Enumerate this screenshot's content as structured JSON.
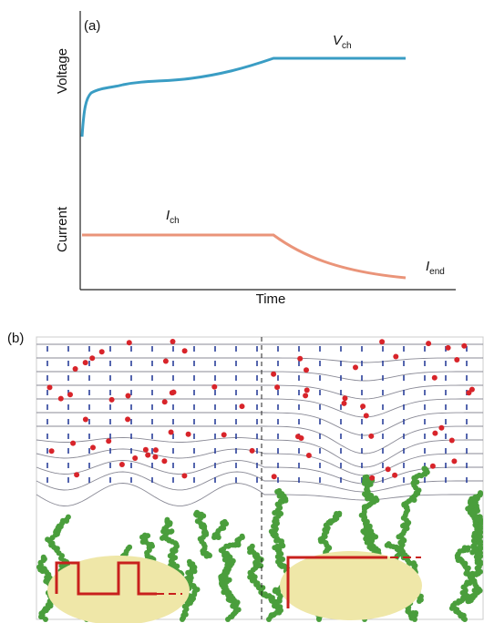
{
  "panel_a": {
    "label": "(a)",
    "y_label_top": "Voltage",
    "y_label_bottom": "Current",
    "x_label": "Time",
    "voltage_curve": {
      "symbol": "V",
      "subscript": "ch"
    },
    "current_curve": {
      "symbol": "I",
      "subscript": "ch"
    },
    "end_current": {
      "symbol": "I",
      "subscript": "end"
    }
  },
  "panel_b": {
    "label": "(b)"
  }
}
